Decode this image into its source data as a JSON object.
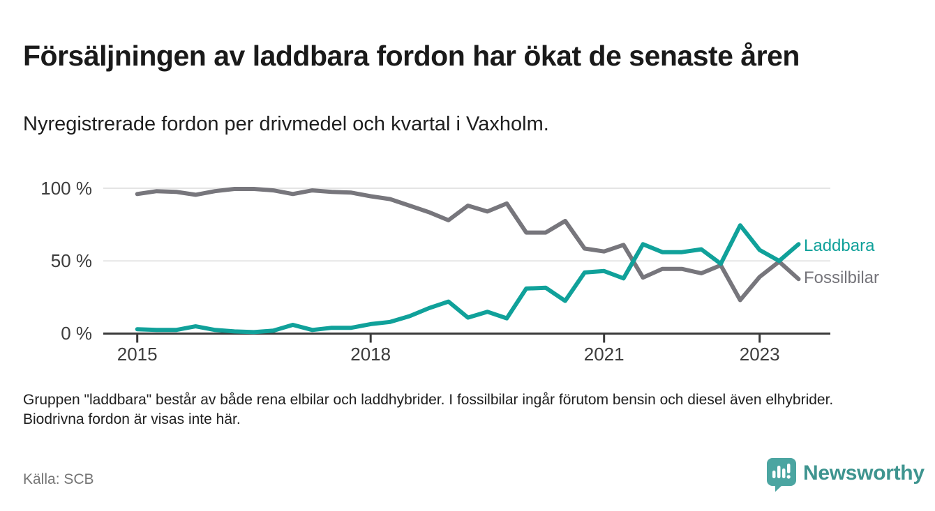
{
  "header": {
    "title": "Försäljningen av laddbara fordon har ökat de senaste åren",
    "subtitle": "Nyregistrerade fordon per drivmedel och kvartal i Vaxholm."
  },
  "chart_data": {
    "type": "line",
    "title": "Nyregistrerade fordon per drivmedel och kvartal i Vaxholm",
    "x_unit": "quarter",
    "x": [
      "2015 Q1",
      "2015 Q2",
      "2015 Q3",
      "2015 Q4",
      "2016 Q1",
      "2016 Q2",
      "2016 Q3",
      "2016 Q4",
      "2017 Q1",
      "2017 Q2",
      "2017 Q3",
      "2017 Q4",
      "2018 Q1",
      "2018 Q2",
      "2018 Q3",
      "2018 Q4",
      "2019 Q1",
      "2019 Q2",
      "2019 Q3",
      "2019 Q4",
      "2020 Q1",
      "2020 Q2",
      "2020 Q3",
      "2020 Q4",
      "2021 Q1",
      "2021 Q2",
      "2021 Q3",
      "2021 Q4",
      "2022 Q1",
      "2022 Q2",
      "2022 Q3",
      "2022 Q4",
      "2023 Q1",
      "2023 Q2",
      "2023 Q3"
    ],
    "x_tick_labels": [
      "2015",
      "2018",
      "2021",
      "2023"
    ],
    "y_tick_labels": [
      "100 %",
      "50 %",
      "0 %"
    ],
    "ylabel": "",
    "xlabel": "",
    "ylim": [
      0,
      100
    ],
    "grid": "horizontal",
    "legend_position": "right-of-line-ends",
    "series": [
      {
        "name": "Fossilbilar",
        "color": "#77767c",
        "values": [
          96,
          98,
          97.5,
          95.5,
          98,
          99.5,
          99.5,
          98.5,
          96,
          98.5,
          97.5,
          97,
          94.5,
          92.5,
          88,
          83.5,
          78,
          88,
          84,
          89.5,
          69.5,
          69.5,
          77.5,
          58.5,
          56.5,
          61,
          38.5,
          44.5,
          44.5,
          41.5,
          47,
          23,
          39,
          49.5,
          37.5
        ]
      },
      {
        "name": "Laddbara",
        "color": "#10a19a",
        "values": [
          3,
          2.5,
          2.5,
          5,
          2.5,
          1.5,
          1,
          2,
          6,
          2.5,
          4,
          4,
          6.5,
          8,
          12,
          17.5,
          22,
          11,
          15,
          10.5,
          31,
          31.5,
          22.5,
          42,
          43,
          38,
          61.5,
          56,
          56,
          58,
          48,
          74.5,
          57.5,
          50,
          61.5
        ]
      }
    ]
  },
  "footnote": {
    "text": "Gruppen \"laddbara\" består av både rena elbilar och laddhybrider. I fossilbilar ingår förutom bensin och diesel även elhybrider. Biodrivna fordon är visas inte här."
  },
  "source": {
    "label": "Källa: SCB"
  },
  "logo": {
    "text": "Newsworthy"
  },
  "colors": {
    "accent_teal": "#10a19a",
    "line_gray": "#77767c",
    "axis": "#3a3a3a",
    "gridline": "#dcdcdc"
  }
}
